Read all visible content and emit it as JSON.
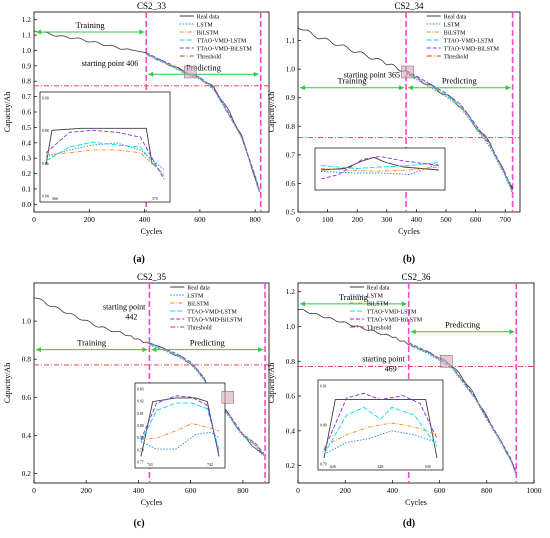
{
  "colors": {
    "real": "#3a3a3a",
    "lstm": "#2e86d4",
    "bilstm": "#f08c1e",
    "ttao_lstm": "#00e0e0",
    "ttao_bilstm": "#8a2be2",
    "threshold": "#e03030",
    "vline": "#ff44cc",
    "arrow": "#2ecc40"
  },
  "legend_labels": {
    "real": "Real data",
    "lstm": "LSTM",
    "bilstm": "BiLSTM",
    "ttao_lstm": "TTAO-VMD-LSTM",
    "ttao_bilstm": "TTAO-VMD-BiLSTM",
    "threshold": "Threshold"
  },
  "chart_data": [
    {
      "type": "line",
      "title": "CS2_33",
      "panel_label": "(a)",
      "xlabel": "Cycles",
      "ylabel": "Capacity/Ah",
      "xlim": [
        0,
        850
      ],
      "ylim": [
        -0.05,
        1.25
      ],
      "xticks": [
        0,
        200,
        400,
        600,
        800
      ],
      "yticks": [
        0.0,
        0.1,
        0.2,
        0.3,
        0.4,
        0.5,
        0.6,
        0.7,
        0.8,
        0.9,
        1.0,
        1.1,
        1.2
      ],
      "ytick_labels": [
        "0.0",
        "0.1",
        "0.2",
        "0.3",
        "0.4",
        "0.5",
        "0.6",
        "0.7",
        "0.8",
        "0.9",
        "1.0",
        "1.1",
        "1.2"
      ],
      "threshold": 0.77,
      "start_cycle": 406,
      "end_cycle": 820,
      "training_label": "Training",
      "predicting_label": "Predicting",
      "start_annotation": "starting point 406",
      "legend": [
        "real",
        "lstm",
        "bilstm",
        "ttao_lstm",
        "ttao_bilstm",
        "threshold"
      ],
      "real": [
        [
          0,
          1.13
        ],
        [
          50,
          1.11
        ],
        [
          100,
          1.09
        ],
        [
          150,
          1.08
        ],
        [
          200,
          1.06
        ],
        [
          250,
          1.04
        ],
        [
          300,
          1.02
        ],
        [
          350,
          1.0
        ],
        [
          406,
          0.98
        ],
        [
          450,
          0.94
        ],
        [
          500,
          0.9
        ],
        [
          550,
          0.86
        ],
        [
          600,
          0.82
        ],
        [
          650,
          0.76
        ],
        [
          700,
          0.62
        ],
        [
          750,
          0.45
        ],
        [
          800,
          0.17
        ],
        [
          815,
          0.08
        ]
      ],
      "pred": [
        [
          406,
          0.98
        ],
        [
          450,
          0.94
        ],
        [
          500,
          0.9
        ],
        [
          550,
          0.85
        ],
        [
          600,
          0.82
        ],
        [
          650,
          0.75
        ],
        [
          700,
          0.6
        ],
        [
          750,
          0.44
        ],
        [
          800,
          0.18
        ],
        [
          815,
          0.09
        ]
      ],
      "inset": {
        "yticks": [
          "0.90",
          "0.88",
          "0.86",
          "0.84"
        ],
        "xticks": [
          "566",
          "570"
        ],
        "curves": {
          "real": [
            [
              0,
              0.7
            ],
            [
              0.05,
              0.35
            ],
            [
              0.3,
              0.33
            ],
            [
              0.5,
              0.33
            ],
            [
              0.7,
              0.33
            ],
            [
              0.85,
              0.33
            ],
            [
              0.9,
              0.7
            ]
          ],
          "lstm": [
            [
              0,
              0.62
            ],
            [
              0.2,
              0.55
            ],
            [
              0.4,
              0.5
            ],
            [
              0.6,
              0.48
            ],
            [
              0.8,
              0.55
            ],
            [
              1,
              0.75
            ]
          ],
          "bilstm": [
            [
              0,
              0.6
            ],
            [
              0.2,
              0.58
            ],
            [
              0.4,
              0.55
            ],
            [
              0.6,
              0.55
            ],
            [
              0.8,
              0.58
            ],
            [
              1,
              0.8
            ]
          ],
          "ttao_lstm": [
            [
              0,
              0.66
            ],
            [
              0.2,
              0.52
            ],
            [
              0.4,
              0.47
            ],
            [
              0.6,
              0.5
            ],
            [
              0.8,
              0.52
            ],
            [
              1,
              0.82
            ]
          ],
          "ttao_bilstm": [
            [
              0,
              0.58
            ],
            [
              0.2,
              0.37
            ],
            [
              0.4,
              0.35
            ],
            [
              0.6,
              0.37
            ],
            [
              0.8,
              0.42
            ],
            [
              1,
              0.85
            ]
          ]
        }
      }
    },
    {
      "type": "line",
      "title": "CS2_34",
      "panel_label": "(b)",
      "xlabel": "Cycles",
      "ylabel": "Capacity/Ah",
      "xlim": [
        0,
        750
      ],
      "ylim": [
        0.5,
        1.2
      ],
      "xticks": [
        0,
        100,
        200,
        300,
        400,
        500,
        600,
        700
      ],
      "yticks": [
        0.5,
        0.6,
        0.7,
        0.8,
        0.9,
        1.0,
        1.1
      ],
      "ytick_labels": [
        "0.5",
        "0.6",
        "0.7",
        "0.8",
        "0.9",
        "1.0",
        "1.1"
      ],
      "threshold": 0.76,
      "start_cycle": 365,
      "end_cycle": 725,
      "training_label": "Training",
      "predicting_label": "Predicting",
      "start_annotation": "starting point 365",
      "legend": [
        "real",
        "lstm",
        "bilstm",
        "ttao_lstm",
        "ttao_bilstm",
        "threshold"
      ],
      "real": [
        [
          0,
          1.15
        ],
        [
          50,
          1.12
        ],
        [
          100,
          1.1
        ],
        [
          150,
          1.08
        ],
        [
          200,
          1.06
        ],
        [
          250,
          1.04
        ],
        [
          300,
          1.02
        ],
        [
          365,
          0.99
        ],
        [
          400,
          0.97
        ],
        [
          450,
          0.94
        ],
        [
          500,
          0.91
        ],
        [
          550,
          0.87
        ],
        [
          600,
          0.8
        ],
        [
          650,
          0.74
        ],
        [
          700,
          0.63
        ],
        [
          725,
          0.58
        ]
      ],
      "pred": [
        [
          365,
          0.99
        ],
        [
          400,
          0.97
        ],
        [
          450,
          0.94
        ],
        [
          500,
          0.91
        ],
        [
          550,
          0.87
        ],
        [
          600,
          0.8
        ],
        [
          650,
          0.73
        ],
        [
          700,
          0.63
        ],
        [
          725,
          0.57
        ]
      ],
      "inset": {
        "yticks": [],
        "xticks": [],
        "curves": {
          "real": [
            [
              0,
              0.6
            ],
            [
              0.2,
              0.55
            ],
            [
              0.35,
              0.3
            ],
            [
              0.45,
              0.18
            ],
            [
              0.55,
              0.35
            ],
            [
              0.7,
              0.5
            ],
            [
              1,
              0.6
            ]
          ],
          "lstm": [
            [
              0,
              0.65
            ],
            [
              0.3,
              0.7
            ],
            [
              0.5,
              0.7
            ],
            [
              0.75,
              0.75
            ],
            [
              1,
              0.4
            ]
          ],
          "bilstm": [
            [
              0,
              0.55
            ],
            [
              0.3,
              0.62
            ],
            [
              0.5,
              0.64
            ],
            [
              0.75,
              0.6
            ],
            [
              1,
              0.5
            ]
          ],
          "ttao_lstm": [
            [
              0,
              0.45
            ],
            [
              0.3,
              0.55
            ],
            [
              0.5,
              0.5
            ],
            [
              0.75,
              0.45
            ],
            [
              1,
              0.35
            ]
          ],
          "ttao_bilstm": [
            [
              0,
              0.9
            ],
            [
              0.15,
              0.75
            ],
            [
              0.35,
              0.25
            ],
            [
              0.5,
              0.15
            ],
            [
              0.7,
              0.3
            ],
            [
              1,
              0.45
            ]
          ]
        }
      }
    },
    {
      "type": "line",
      "title": "CS2_35",
      "panel_label": "(c)",
      "xlabel": "Cycles",
      "ylabel": "Capacity/Ah",
      "xlim": [
        0,
        900
      ],
      "ylim": [
        0.15,
        1.2
      ],
      "xticks": [
        0,
        200,
        400,
        600,
        800
      ],
      "yticks": [
        0.2,
        0.4,
        0.6,
        0.8,
        1.0
      ],
      "ytick_labels": [
        "0.2",
        "0.4",
        "0.6",
        "0.8",
        "1.0"
      ],
      "threshold": 0.77,
      "start_cycle": 442,
      "end_cycle": 885,
      "training_label": "Training",
      "predicting_label": "Predicting",
      "start_annotation_line1": "starting point",
      "start_annotation_line2": "442",
      "legend": [
        "real",
        "lstm",
        "bilstm",
        "ttao_lstm",
        "ttao_bilstm",
        "threshold"
      ],
      "real": [
        [
          0,
          1.13
        ],
        [
          50,
          1.09
        ],
        [
          100,
          1.06
        ],
        [
          150,
          1.03
        ],
        [
          200,
          1.0
        ],
        [
          250,
          0.97
        ],
        [
          300,
          0.95
        ],
        [
          350,
          0.93
        ],
        [
          442,
          0.88
        ],
        [
          500,
          0.85
        ],
        [
          550,
          0.82
        ],
        [
          600,
          0.78
        ],
        [
          650,
          0.7
        ],
        [
          700,
          0.6
        ],
        [
          750,
          0.5
        ],
        [
          800,
          0.4
        ],
        [
          850,
          0.33
        ],
        [
          880,
          0.3
        ]
      ],
      "pred": [
        [
          442,
          0.88
        ],
        [
          500,
          0.85
        ],
        [
          550,
          0.82
        ],
        [
          600,
          0.78
        ],
        [
          650,
          0.7
        ],
        [
          700,
          0.58
        ],
        [
          750,
          0.5
        ],
        [
          800,
          0.4
        ],
        [
          850,
          0.35
        ],
        [
          880,
          0.3
        ]
      ],
      "inset": {
        "yticks": [
          "0.83",
          "0.82",
          "0.81",
          "0.80",
          "0.79",
          "0.78",
          "0.77"
        ],
        "xticks": [
          "741",
          "742"
        ],
        "curves": {
          "real": [
            [
              0,
              0.95
            ],
            [
              0.15,
              0.2
            ],
            [
              0.45,
              0.15
            ],
            [
              0.7,
              0.15
            ],
            [
              0.85,
              0.2
            ],
            [
              1,
              0.95
            ]
          ],
          "lstm": [
            [
              0,
              0.75
            ],
            [
              0.2,
              0.85
            ],
            [
              0.45,
              0.85
            ],
            [
              0.7,
              0.65
            ],
            [
              0.9,
              0.62
            ],
            [
              1,
              0.7
            ]
          ],
          "bilstm": [
            [
              0,
              0.72
            ],
            [
              0.2,
              0.7
            ],
            [
              0.45,
              0.6
            ],
            [
              0.65,
              0.5
            ],
            [
              0.85,
              0.55
            ],
            [
              1,
              0.6
            ]
          ],
          "ttao_lstm": [
            [
              0,
              0.75
            ],
            [
              0.2,
              0.32
            ],
            [
              0.45,
              0.22
            ],
            [
              0.65,
              0.22
            ],
            [
              0.85,
              0.3
            ],
            [
              1,
              0.85
            ]
          ],
          "ttao_bilstm": [
            [
              0,
              0.72
            ],
            [
              0.2,
              0.22
            ],
            [
              0.45,
              0.12
            ],
            [
              0.65,
              0.14
            ],
            [
              0.85,
              0.25
            ],
            [
              1,
              0.92
            ]
          ]
        }
      }
    },
    {
      "type": "line",
      "title": "CS2_36",
      "panel_label": "(d)",
      "xlabel": "Cycles",
      "ylabel": "Capacity/Ah",
      "xlim": [
        0,
        1000
      ],
      "ylim": [
        0.1,
        1.25
      ],
      "xticks": [
        0,
        200,
        400,
        600,
        800,
        1000
      ],
      "yticks": [
        0.2,
        0.4,
        0.6,
        0.8,
        1.0,
        1.2
      ],
      "ytick_labels": [
        "0.2",
        "0.4",
        "0.6",
        "0.8",
        "1.0",
        "1.2"
      ],
      "threshold": 0.77,
      "start_cycle": 469,
      "end_cycle": 925,
      "training_label": "Training",
      "predicting_label": "Predicting",
      "start_annotation_line1": "starting point",
      "start_annotation_line2": "469",
      "legend": [
        "real",
        "lstm",
        "bilstm",
        "ttao_lstm",
        "ttao_bilstm",
        "threshold"
      ],
      "real": [
        [
          0,
          1.1
        ],
        [
          100,
          1.06
        ],
        [
          200,
          1.02
        ],
        [
          300,
          0.98
        ],
        [
          400,
          0.94
        ],
        [
          469,
          0.9
        ],
        [
          550,
          0.85
        ],
        [
          600,
          0.82
        ],
        [
          650,
          0.78
        ],
        [
          700,
          0.7
        ],
        [
          750,
          0.6
        ],
        [
          800,
          0.48
        ],
        [
          850,
          0.36
        ],
        [
          900,
          0.24
        ],
        [
          925,
          0.16
        ]
      ],
      "pred": [
        [
          469,
          0.9
        ],
        [
          550,
          0.85
        ],
        [
          600,
          0.81
        ],
        [
          650,
          0.77
        ],
        [
          700,
          0.68
        ],
        [
          750,
          0.59
        ],
        [
          800,
          0.47
        ],
        [
          850,
          0.36
        ],
        [
          900,
          0.24
        ],
        [
          925,
          0.15
        ]
      ],
      "inset": {
        "yticks": [
          "0.81",
          "0.80",
          "0.79"
        ],
        "xticks": [
          "626",
          "628",
          "630"
        ],
        "curves": {
          "real": [
            [
              0,
              0.95
            ],
            [
              0.1,
              0.2
            ],
            [
              0.9,
              0.2
            ],
            [
              1,
              0.95
            ]
          ],
          "lstm": [
            [
              0,
              0.9
            ],
            [
              0.2,
              0.75
            ],
            [
              0.4,
              0.7
            ],
            [
              0.6,
              0.6
            ],
            [
              0.8,
              0.65
            ],
            [
              1,
              0.75
            ]
          ],
          "bilstm": [
            [
              0,
              0.8
            ],
            [
              0.2,
              0.65
            ],
            [
              0.4,
              0.55
            ],
            [
              0.6,
              0.5
            ],
            [
              0.8,
              0.55
            ],
            [
              1,
              0.65
            ]
          ],
          "ttao_lstm": [
            [
              0,
              0.9
            ],
            [
              0.2,
              0.4
            ],
            [
              0.35,
              0.3
            ],
            [
              0.5,
              0.45
            ],
            [
              0.6,
              0.3
            ],
            [
              0.8,
              0.4
            ],
            [
              1,
              0.8
            ]
          ],
          "ttao_bilstm": [
            [
              0,
              0.85
            ],
            [
              0.2,
              0.18
            ],
            [
              0.35,
              0.12
            ],
            [
              0.5,
              0.2
            ],
            [
              0.7,
              0.15
            ],
            [
              0.85,
              0.25
            ],
            [
              1,
              0.7
            ]
          ]
        }
      }
    }
  ]
}
